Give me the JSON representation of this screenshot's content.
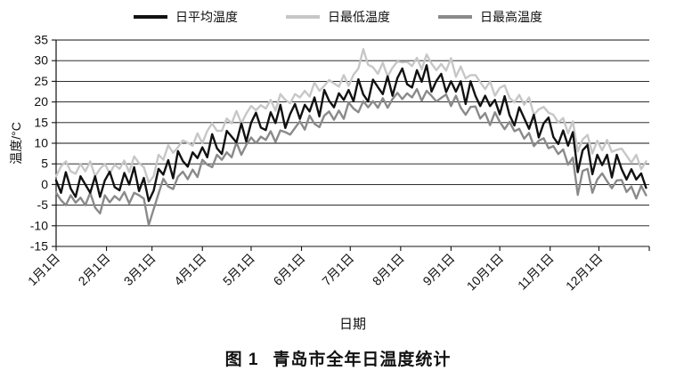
{
  "figure": {
    "caption_label": "图 1",
    "caption_title": "青岛市全年日温度统计"
  },
  "chart_data": {
    "type": "line",
    "title": "",
    "xlabel": "日期",
    "ylabel": "温度/°C",
    "ylim": [
      -15,
      35
    ],
    "ytick_step": 5,
    "y_ticks": [
      -15,
      -10,
      -5,
      0,
      5,
      10,
      15,
      20,
      25,
      30,
      35
    ],
    "grid": "horizontal",
    "legend_position": "top",
    "x_unit": "day_of_year",
    "x_total_days": 365,
    "x_sample_step_days": 3,
    "x_ticks": {
      "labels": [
        "1月1日",
        "2月1日",
        "3月1日",
        "4月1日",
        "5月1日",
        "6月1日",
        "7月1日",
        "8月1日",
        "9月1日",
        "10月1日",
        "11月1日",
        "12月1日"
      ],
      "days": [
        0,
        31,
        59,
        90,
        120,
        151,
        181,
        212,
        243,
        273,
        304,
        334
      ]
    },
    "series": [
      {
        "name": "日平均温度",
        "color": "#111111",
        "width": 2.4,
        "values": [
          1,
          -2,
          3,
          -1,
          -3,
          2,
          0,
          -2,
          2,
          -3,
          1,
          3.1,
          -0.6,
          -1.4,
          2.8,
          0,
          4.2,
          -1.6,
          1.6,
          -4,
          -1.5,
          3.8,
          2.4,
          5.9,
          1.5,
          8.1,
          5.7,
          4.3,
          7.8,
          6.4,
          9,
          6.6,
          12.2,
          8.8,
          7.4,
          13,
          11.6,
          10.2,
          14.8,
          10.4,
          15,
          17.4,
          13.8,
          13.2,
          17.5,
          14.9,
          19.3,
          13.7,
          17.1,
          19.5,
          15.9,
          19.3,
          17.7,
          21.1,
          16.5,
          22.9,
          20.3,
          18.7,
          22.1,
          20.5,
          22.9,
          20.2,
          25.5,
          21.8,
          20.1,
          25.4,
          23.6,
          21.9,
          26.2,
          21.5,
          25.8,
          28.1,
          24.3,
          23.5,
          27.7,
          24.9,
          28.9,
          22.5,
          25.1,
          26.8,
          22.4,
          25,
          22.5,
          25,
          19.5,
          25,
          21.5,
          19,
          21.5,
          19,
          20.5,
          17,
          21.4,
          16.8,
          14.3,
          18.7,
          16.1,
          13.5,
          16.9,
          11.4,
          14.8,
          16.2,
          11.5,
          9.8,
          13.1,
          9.4,
          12.7,
          3,
          8.3,
          9.6,
          2.5,
          7.2,
          4.7,
          7.2,
          1.7,
          7.2,
          3.7,
          1.2,
          3.7,
          1.2,
          2.7,
          -0.8
        ]
      },
      {
        "name": "日最低温度",
        "color": "#c7c7c7",
        "width": 2.4,
        "values": [
          2,
          4.4,
          5.6,
          3.2,
          2.6,
          5,
          3.2,
          5.6,
          2,
          3.8,
          5,
          2.7,
          4.8,
          3.8,
          5.8,
          3,
          6.8,
          5.2,
          4.2,
          0.5,
          2,
          7.2,
          6,
          9.5,
          7.7,
          9,
          10.7,
          10.1,
          9.4,
          12.4,
          10,
          13,
          14.8,
          13,
          13,
          16,
          14.8,
          17.8,
          14.8,
          17.2,
          19,
          18,
          19.2,
          18.4,
          20.5,
          17.9,
          21.9,
          20.5,
          19.7,
          21.9,
          21.1,
          22.7,
          21.3,
          24.7,
          22.7,
          23.9,
          25.3,
          24.5,
          23.7,
          26.5,
          23.9,
          26.6,
          28.1,
          32.8,
          29,
          28.4,
          26.8,
          29.5,
          26.2,
          28.3,
          29.8,
          29.6,
          29.7,
          28.7,
          30.7,
          27.9,
          31.5,
          29.3,
          27.7,
          29.2,
          27.6,
          30.6,
          26.1,
          28.6,
          25.7,
          26.5,
          26.5,
          24.8,
          23.1,
          25,
          21.5,
          23.4,
          24,
          21,
          19.9,
          21.7,
          19.3,
          21.1,
          16.9,
          18.2,
          18.8,
          17.4,
          16.9,
          15,
          16.1,
          12.4,
          15.3,
          8,
          10.9,
          12,
          7.5,
          10.6,
          8.3,
          10.8,
          7.9,
          8.4,
          8.7,
          7,
          5.3,
          7.2,
          3.7,
          5.6
        ]
      },
      {
        "name": "日最高温度",
        "color": "#8a8a8a",
        "width": 2.4,
        "values": [
          -2,
          -3.8,
          -5,
          -2.6,
          -4.4,
          -3.2,
          -5,
          -2,
          -5.6,
          -7,
          -2.6,
          -4.3,
          -2.8,
          -3.8,
          -1.8,
          -4.6,
          -2,
          -2.6,
          -3.4,
          -9.8,
          -6,
          -2.2,
          1.4,
          -0.5,
          -1.1,
          1.9,
          3.1,
          1.3,
          3.6,
          1.8,
          6,
          4.8,
          4.2,
          7.2,
          6,
          7.8,
          6.6,
          10.2,
          7.2,
          9.6,
          11.4,
          10,
          11.6,
          10.8,
          12.9,
          10.3,
          13.1,
          12.7,
          12.1,
          13.7,
          15.3,
          13.3,
          16.7,
          14.7,
          13.9,
          16.7,
          17.7,
          15.7,
          17.9,
          15.9,
          19.9,
          18.4,
          17.5,
          20.2,
          18.7,
          20.2,
          18.6,
          20.9,
          18.6,
          20.7,
          22.2,
          20.7,
          22.1,
          21.1,
          23.1,
          20.3,
          22.7,
          21.5,
          20.1,
          21,
          21.8,
          19,
          21.5,
          18.6,
          16.9,
          18.8,
          18.9,
          16,
          17.3,
          14.4,
          17.5,
          15.2,
          13.4,
          15.2,
          12.9,
          13.5,
          11.1,
          12.5,
          9.3,
          10.6,
          11.2,
          8.8,
          9.3,
          7.4,
          8.5,
          4.8,
          6.5,
          -2.5,
          3.3,
          3.8,
          -2,
          1.2,
          2.7,
          0.8,
          -0.9,
          1,
          1.1,
          -1.8,
          -0.5,
          -3.4,
          -0.3,
          -2.6
        ]
      }
    ]
  }
}
